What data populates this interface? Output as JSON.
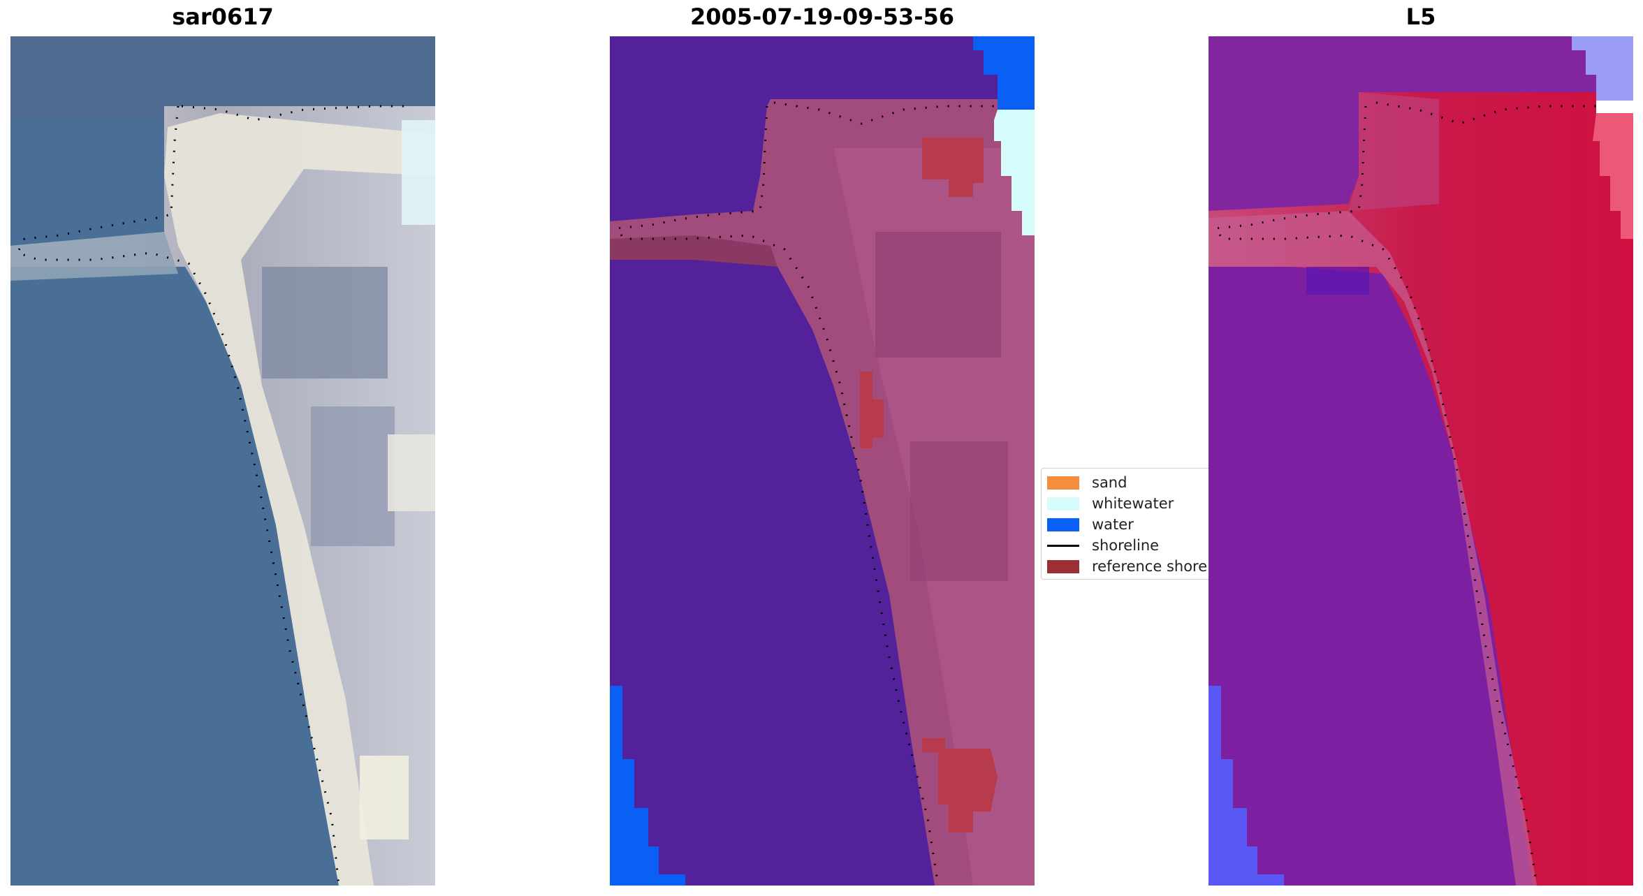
{
  "panels": [
    {
      "title": "sar0617"
    },
    {
      "title": "2005-07-19-09-53-56"
    },
    {
      "title": "L5"
    }
  ],
  "legend": {
    "items": [
      {
        "label": "sand",
        "color": "#f68d3c",
        "kind": "patch"
      },
      {
        "label": "whitewater",
        "color": "#d6fcfb",
        "kind": "patch"
      },
      {
        "label": "water",
        "color": "#0a60f5",
        "kind": "patch"
      },
      {
        "label": "shoreline",
        "color": "#000000",
        "kind": "line"
      },
      {
        "label": "reference shoreli",
        "color": "#9b2f33",
        "kind": "patch"
      }
    ]
  },
  "colors": {
    "rgb_water": "#4a6f96",
    "rgb_land": "#a4a7b6",
    "rgb_beach": "#e6e4d8",
    "class_water": "#53219a",
    "class_land": "#a24c7e",
    "class_sand_overlay": "#b83a4d",
    "class_water_blue": "#0a60f5",
    "class_whitewater": "#d6fcfb",
    "mndwi_water": "#7c1fa1",
    "mndwi_land": "#c8194a",
    "mndwi_water_blue": "#5a58f5",
    "mndwi_white": "#ffffff"
  }
}
